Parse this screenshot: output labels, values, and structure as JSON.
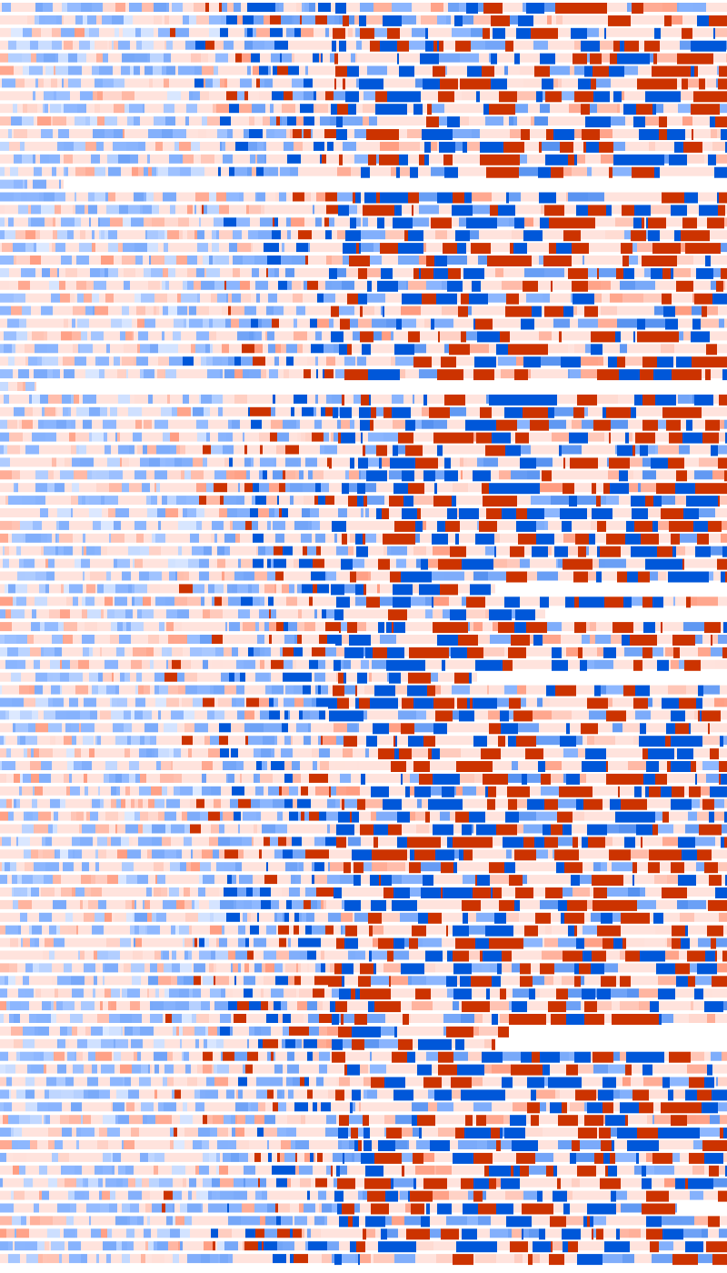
{
  "chart_data": {
    "type": "heatmap",
    "title": "",
    "xlabel": "",
    "ylabel": "",
    "grid": false,
    "legend": "none",
    "colors": {
      "negative_strong": "#0057d9",
      "negative_light": "#8fb8ff",
      "neutral": "#ffe3dd",
      "positive_light": "#ff9c80",
      "positive_strong": "#cc3300"
    }
  }
}
